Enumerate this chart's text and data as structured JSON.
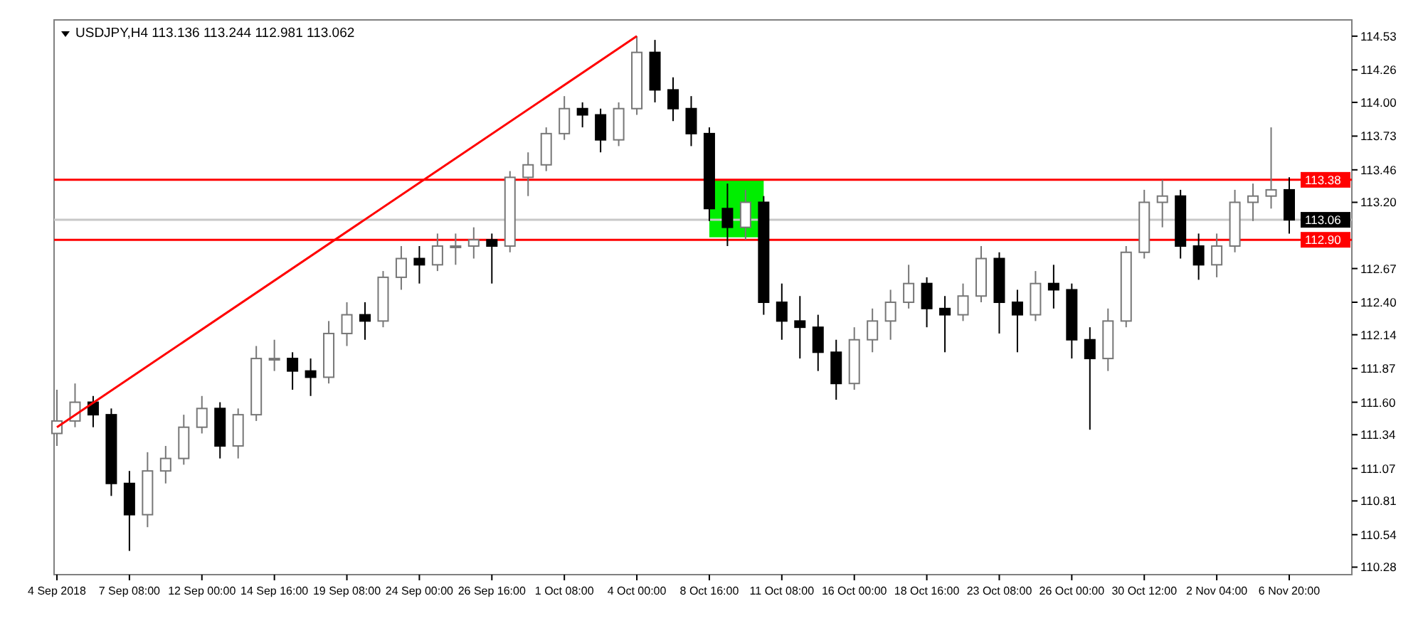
{
  "chart_data": {
    "type": "candlestick",
    "title": "USDJPY,H4  113.136 113.244 112.981 113.062",
    "categories": [
      "4 Sep 2018",
      null,
      null,
      null,
      "7 Sep 08:00",
      null,
      null,
      null,
      "12 Sep 00:00",
      null,
      null,
      null,
      "14 Sep 16:00",
      null,
      null,
      null,
      "19 Sep 08:00",
      null,
      null,
      null,
      "24 Sep 00:00",
      null,
      null,
      null,
      "26 Sep 16:00",
      null,
      null,
      null,
      "1 Oct 08:00",
      null,
      null,
      null,
      "4 Oct 00:00",
      null,
      null,
      null,
      "8 Oct 16:00",
      null,
      null,
      null,
      "11 Oct 08:00",
      null,
      null,
      null,
      "16 Oct 00:00",
      null,
      null,
      null,
      "18 Oct 16:00",
      null,
      null,
      null,
      "23 Oct 08:00",
      null,
      null,
      null,
      "26 Oct 00:00",
      null,
      null,
      null,
      "30 Oct 12:00",
      null,
      null,
      null,
      "2 Nov 04:00",
      null,
      null,
      null,
      "6 Nov 20:00"
    ],
    "ohlc": [
      [
        111.35,
        111.7,
        111.25,
        111.45
      ],
      [
        111.45,
        111.75,
        111.4,
        111.6
      ],
      [
        111.6,
        111.65,
        111.4,
        111.5
      ],
      [
        111.5,
        111.55,
        110.85,
        110.95
      ],
      [
        110.95,
        111.05,
        110.41,
        110.7
      ],
      [
        110.7,
        111.2,
        110.6,
        111.05
      ],
      [
        111.05,
        111.25,
        110.95,
        111.15
      ],
      [
        111.15,
        111.5,
        111.1,
        111.4
      ],
      [
        111.4,
        111.65,
        111.35,
        111.55
      ],
      [
        111.55,
        111.6,
        111.15,
        111.25
      ],
      [
        111.25,
        111.55,
        111.15,
        111.5
      ],
      [
        111.5,
        112.05,
        111.45,
        111.95
      ],
      [
        111.95,
        112.1,
        111.85,
        111.95
      ],
      [
        111.95,
        112.0,
        111.7,
        111.85
      ],
      [
        111.85,
        111.95,
        111.65,
        111.8
      ],
      [
        111.8,
        112.25,
        111.75,
        112.15
      ],
      [
        112.15,
        112.4,
        112.05,
        112.3
      ],
      [
        112.3,
        112.4,
        112.1,
        112.25
      ],
      [
        112.25,
        112.65,
        112.2,
        112.6
      ],
      [
        112.6,
        112.85,
        112.5,
        112.75
      ],
      [
        112.75,
        112.85,
        112.55,
        112.7
      ],
      [
        112.7,
        112.95,
        112.65,
        112.85
      ],
      [
        112.85,
        112.95,
        112.7,
        112.85
      ],
      [
        112.85,
        113.0,
        112.75,
        112.9
      ],
      [
        112.9,
        112.95,
        112.55,
        112.85
      ],
      [
        112.85,
        113.45,
        112.8,
        113.4
      ],
      [
        113.4,
        113.6,
        113.25,
        113.5
      ],
      [
        113.5,
        113.8,
        113.45,
        113.75
      ],
      [
        113.75,
        114.05,
        113.7,
        113.95
      ],
      [
        113.95,
        114.0,
        113.8,
        113.9
      ],
      [
        113.9,
        113.95,
        113.6,
        113.7
      ],
      [
        113.7,
        114.0,
        113.65,
        113.95
      ],
      [
        113.95,
        114.53,
        113.9,
        114.4
      ],
      [
        114.4,
        114.5,
        114.0,
        114.1
      ],
      [
        114.1,
        114.2,
        113.85,
        113.95
      ],
      [
        113.95,
        114.05,
        113.65,
        113.75
      ],
      [
        113.75,
        113.8,
        113.05,
        113.15
      ],
      [
        113.15,
        113.35,
        112.85,
        113.0
      ],
      [
        113.0,
        113.3,
        112.9,
        113.2
      ],
      [
        113.2,
        113.25,
        112.3,
        112.4
      ],
      [
        112.4,
        112.55,
        112.1,
        112.25
      ],
      [
        112.25,
        112.45,
        111.95,
        112.2
      ],
      [
        112.2,
        112.3,
        111.85,
        112.0
      ],
      [
        112.0,
        112.1,
        111.62,
        111.75
      ],
      [
        111.75,
        112.2,
        111.7,
        112.1
      ],
      [
        112.1,
        112.35,
        112.0,
        112.25
      ],
      [
        112.25,
        112.5,
        112.1,
        112.4
      ],
      [
        112.4,
        112.7,
        112.35,
        112.55
      ],
      [
        112.55,
        112.6,
        112.2,
        112.35
      ],
      [
        112.35,
        112.45,
        112.0,
        112.3
      ],
      [
        112.3,
        112.55,
        112.25,
        112.45
      ],
      [
        112.45,
        112.85,
        112.4,
        112.75
      ],
      [
        112.75,
        112.8,
        112.15,
        112.4
      ],
      [
        112.4,
        112.5,
        112.0,
        112.3
      ],
      [
        112.3,
        112.65,
        112.25,
        112.55
      ],
      [
        112.55,
        112.7,
        112.35,
        112.5
      ],
      [
        112.5,
        112.55,
        111.95,
        112.1
      ],
      [
        112.1,
        112.2,
        111.38,
        111.95
      ],
      [
        111.95,
        112.35,
        111.85,
        112.25
      ],
      [
        112.25,
        112.85,
        112.2,
        112.8
      ],
      [
        112.8,
        113.3,
        112.75,
        113.2
      ],
      [
        113.2,
        113.38,
        113.0,
        113.25
      ],
      [
        113.25,
        113.3,
        112.75,
        112.85
      ],
      [
        112.85,
        112.95,
        112.58,
        112.7
      ],
      [
        112.7,
        112.95,
        112.6,
        112.85
      ],
      [
        112.85,
        113.3,
        112.8,
        113.2
      ],
      [
        113.2,
        113.35,
        113.05,
        113.25
      ],
      [
        113.25,
        113.8,
        113.15,
        113.3
      ],
      [
        113.3,
        113.4,
        112.95,
        113.06
      ]
    ],
    "series": [
      {
        "type": "line",
        "color": "#ff0000",
        "values": [
          111.4,
          null,
          null,
          null,
          null,
          null,
          null,
          null,
          null,
          null,
          null,
          null,
          null,
          null,
          null,
          null,
          null,
          null,
          null,
          null,
          null,
          null,
          null,
          null,
          null,
          null,
          null,
          null,
          null,
          null,
          null,
          null,
          114.53,
          null,
          null,
          null,
          null,
          null,
          null,
          null,
          null,
          null,
          null,
          null,
          null,
          null,
          null,
          null,
          null,
          null,
          null,
          null,
          null,
          null,
          null,
          null,
          null,
          null,
          null,
          null,
          null,
          null,
          null,
          null,
          null,
          null,
          null,
          null,
          null
        ]
      }
    ],
    "ylim": [
      110.22,
      114.66
    ],
    "yticks": [
      114.53,
      114.26,
      {
        "value": 114.0,
        "label": "114.00"
      },
      113.73,
      113.46,
      {
        "value": 113.2,
        "label": "113.20"
      },
      112.67,
      {
        "value": 112.4,
        "label": "112.40"
      },
      112.14,
      111.87,
      {
        "value": 111.6,
        "label": "111.60"
      },
      111.34,
      111.07,
      110.81,
      110.54,
      110.28
    ],
    "ref_lines": [
      {
        "axis": "y",
        "value": 113.38,
        "label": "113.38",
        "color": "#ff0000"
      },
      {
        "axis": "y",
        "value": 113.06,
        "label": "113.06",
        "color": "#c8c8c8"
      },
      {
        "axis": "y",
        "value": 112.9,
        "label": "112.90",
        "color": "#ff0000"
      }
    ],
    "grid": false
  }
}
